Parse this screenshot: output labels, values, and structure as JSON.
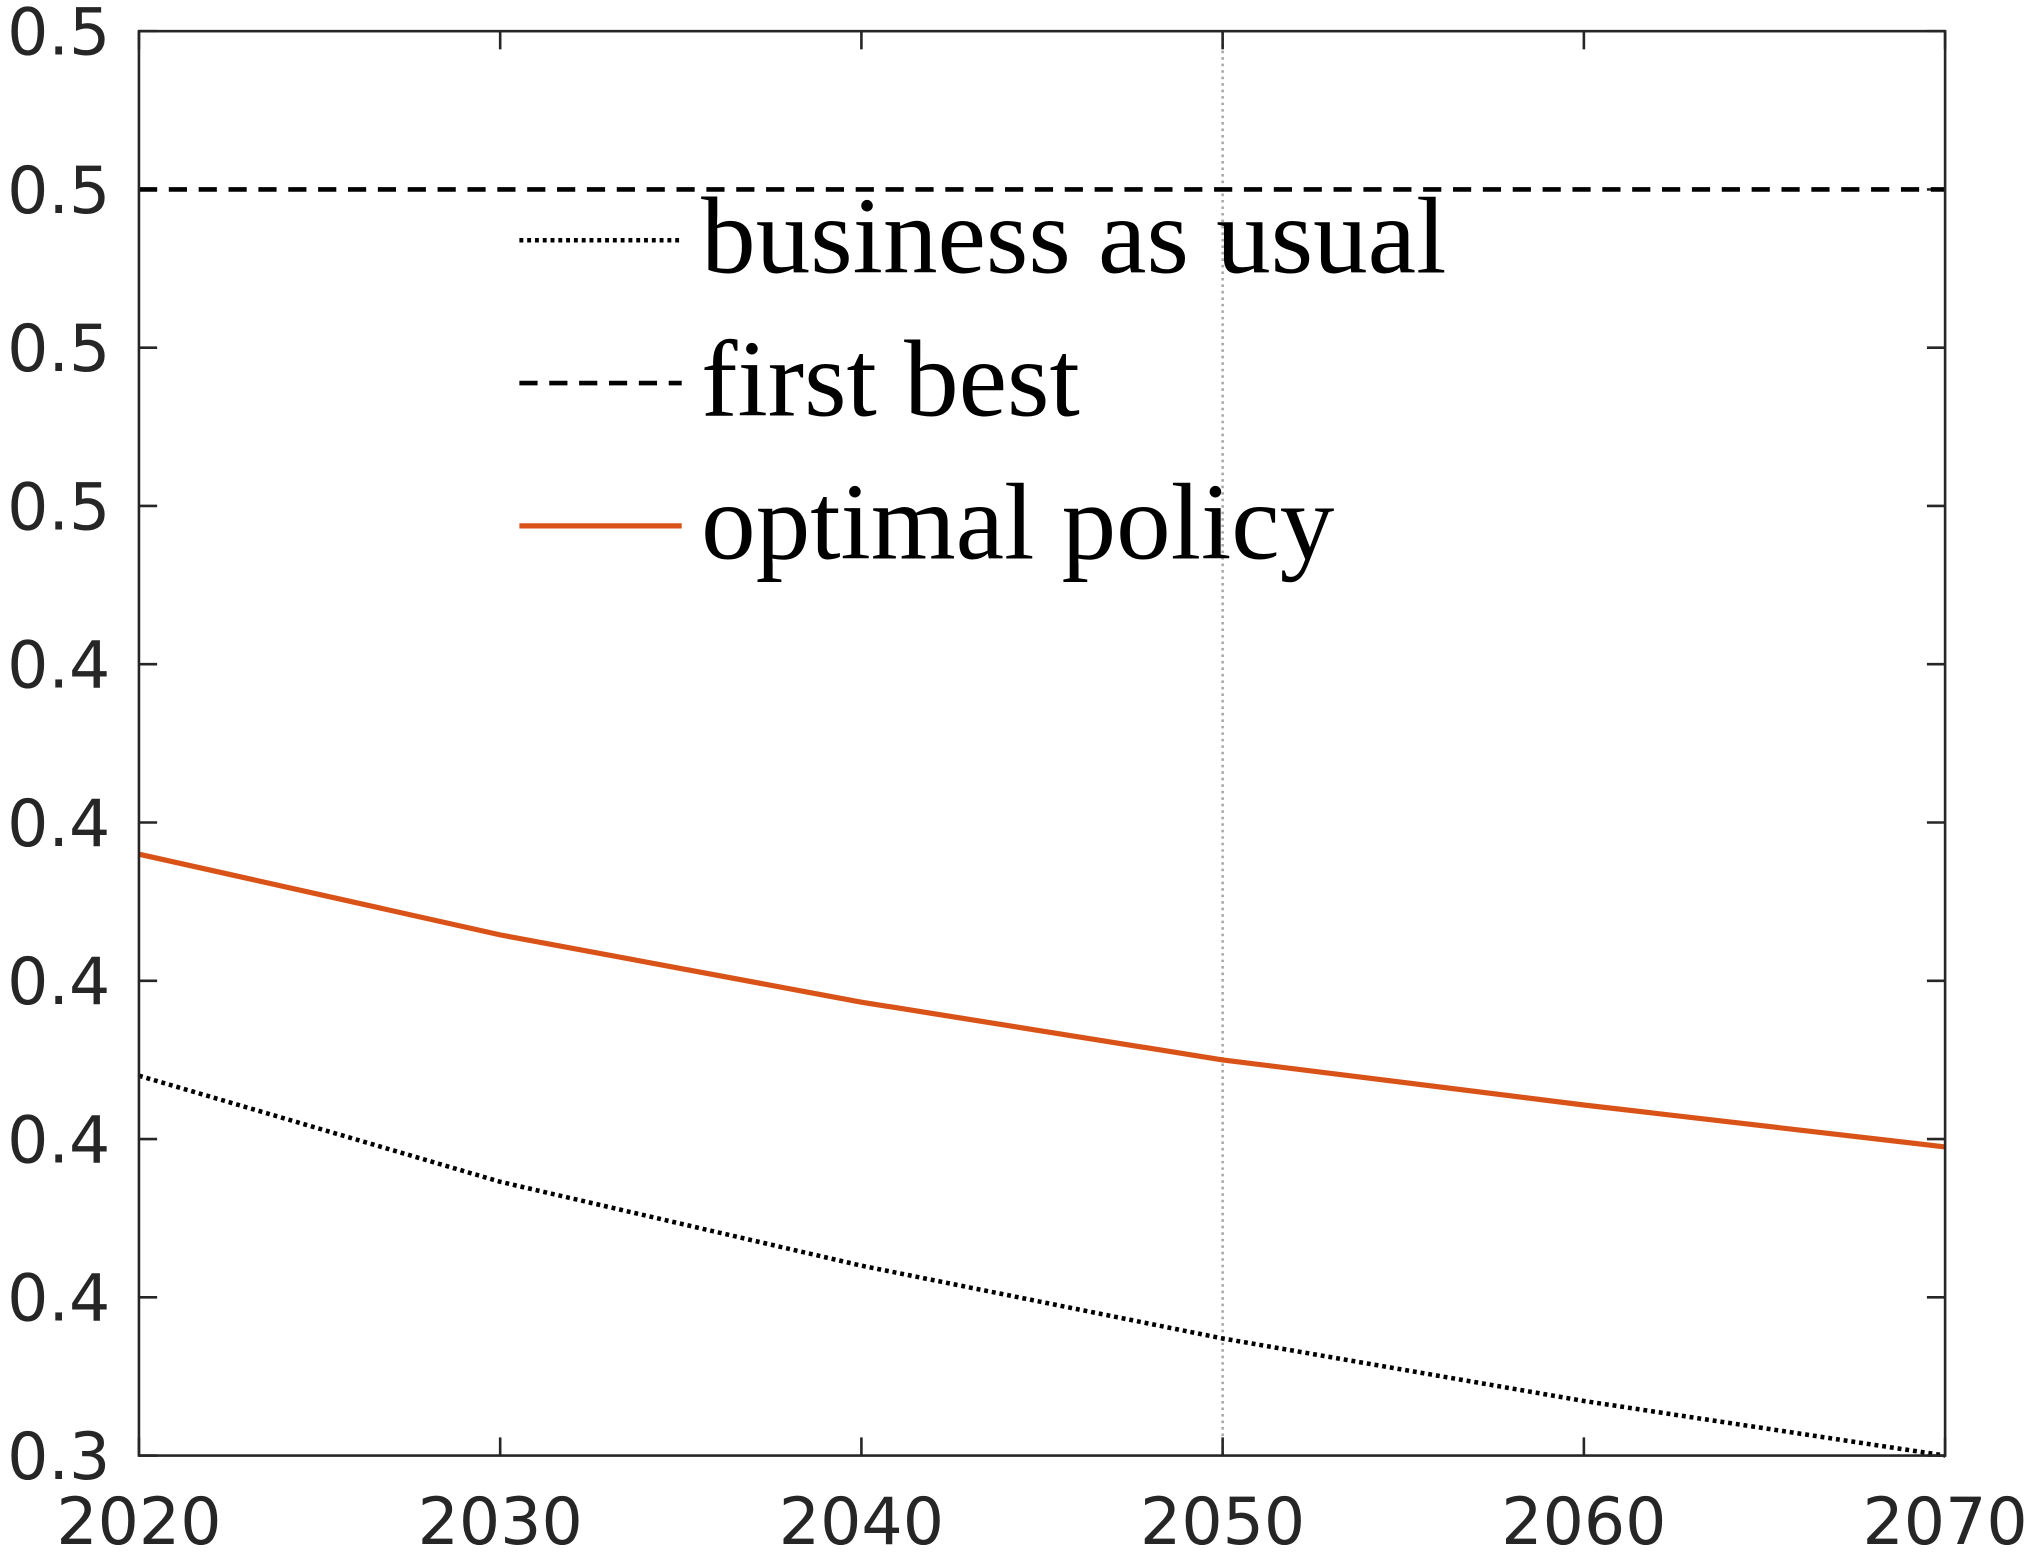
{
  "chart_data": {
    "type": "line",
    "x": [
      2020,
      2030,
      2040,
      2050,
      2060,
      2070
    ],
    "series": [
      {
        "name": "business as usual",
        "color": "#000000",
        "dash": "dotted",
        "values": [
          0.388,
          0.3746,
          0.364,
          0.3548,
          0.3469,
          0.34
        ]
      },
      {
        "name": "first best",
        "color": "#000000",
        "dash": "dashed",
        "values": [
          0.5,
          0.5,
          0.5,
          0.5,
          0.5,
          0.5
        ]
      },
      {
        "name": "optimal policy",
        "color": "#d95319",
        "dash": "solid",
        "values": [
          0.416,
          0.4058,
          0.3973,
          0.39,
          0.3843,
          0.379
        ]
      }
    ],
    "xlim": [
      2020,
      2070
    ],
    "xticks": [
      2020,
      2030,
      2040,
      2050,
      2060,
      2070
    ],
    "ylim": [
      0.34,
      0.52
    ],
    "yticks": [
      {
        "value": 0.34,
        "label": "0.3"
      },
      {
        "value": 0.36,
        "label": "0.4"
      },
      {
        "value": 0.38,
        "label": "0.4"
      },
      {
        "value": 0.4,
        "label": "0.4"
      },
      {
        "value": 0.42,
        "label": "0.4"
      },
      {
        "value": 0.44,
        "label": "0.4"
      },
      {
        "value": 0.46,
        "label": "0.5"
      },
      {
        "value": 0.48,
        "label": "0.5"
      },
      {
        "value": 0.5,
        "label": "0.5"
      },
      {
        "value": 0.52,
        "label": "0.5"
      }
    ],
    "vline_x": 2050,
    "grid": false,
    "legend": "north"
  }
}
